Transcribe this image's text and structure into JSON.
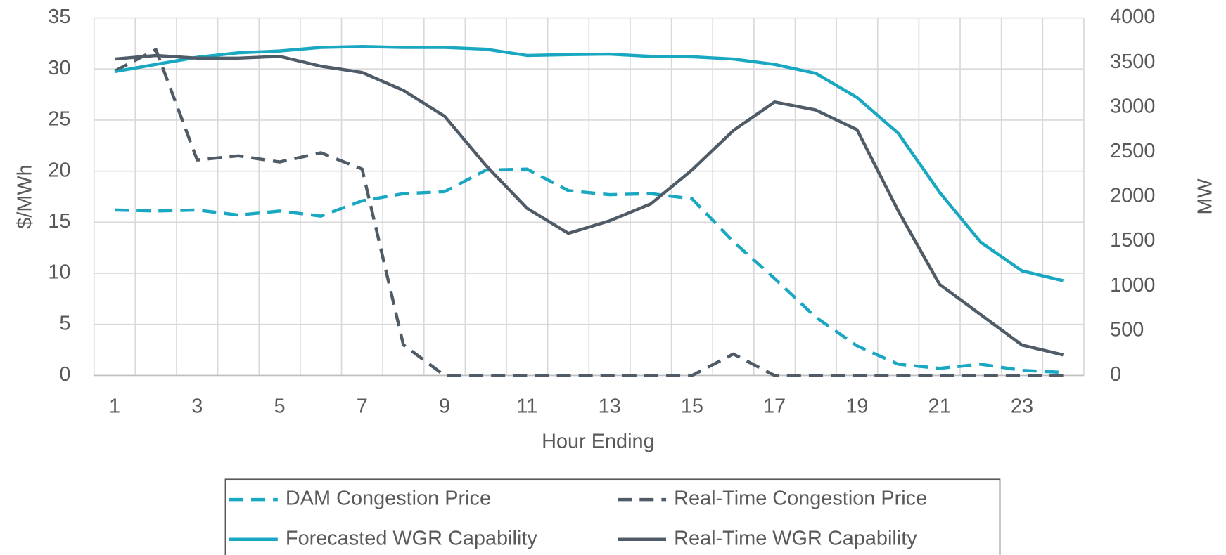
{
  "chart_data": {
    "type": "line",
    "xlabel": "Hour Ending",
    "ylabel": "$/MWh",
    "y2label": "MW",
    "categories": [
      1,
      null,
      3,
      null,
      5,
      null,
      7,
      null,
      9,
      null,
      11,
      null,
      13,
      null,
      15,
      null,
      17,
      null,
      19,
      null,
      21,
      null,
      23,
      null
    ],
    "ylim": [
      0,
      35
    ],
    "yticks": [
      0,
      5,
      10,
      15,
      20,
      25,
      30,
      35
    ],
    "y2lim": [
      0,
      4000
    ],
    "y2ticks": [
      0,
      500,
      1000,
      1500,
      2000,
      2500,
      3000,
      3500,
      4000
    ],
    "grid": true,
    "legend": "bottom",
    "series": [
      {
        "name": "DAM Congestion Price",
        "color": "#19a7c2",
        "style": "dashed",
        "values": [
          16.2,
          16.1,
          16.2,
          15.7,
          16.1,
          15.6,
          17.1,
          17.8,
          18.0,
          20.1,
          20.2,
          18.1,
          17.7,
          17.8,
          17.3,
          13.1,
          9.5,
          5.7,
          2.9,
          1.1,
          0.7,
          1.1,
          0.5,
          0.3
        ]
      },
      {
        "name": "Real-Time Congestion Price",
        "color": "#4f5b66",
        "style": "dashed",
        "values": [
          29.8,
          31.9,
          21.1,
          21.5,
          20.9,
          21.8,
          20.2,
          3.0,
          0,
          0,
          0,
          0,
          0,
          0,
          0,
          2.1,
          0,
          0,
          0,
          0,
          0,
          0,
          0,
          0
        ]
      },
      {
        "name": "Forecasted WGR Capability",
        "color": "#19a7c2",
        "style": "solid",
        "axis": "y2",
        "values": [
          3400,
          3480,
          3560,
          3610,
          3630,
          3670,
          3680,
          3670,
          3670,
          3650,
          3580,
          3590,
          3595,
          3570,
          3565,
          3540,
          3480,
          3380,
          3110,
          2710,
          2050,
          1490,
          1170,
          1060
        ]
      },
      {
        "name": "Real-Time WGR Capability",
        "color": "#4f5b66",
        "style": "solid",
        "axis": "y2",
        "values": [
          3540,
          3580,
          3550,
          3550,
          3570,
          3460,
          3390,
          3190,
          2900,
          2350,
          1870,
          1590,
          1730,
          1920,
          2300,
          2740,
          3060,
          2970,
          2750,
          1840,
          1020,
          680,
          340,
          230
        ]
      }
    ]
  }
}
